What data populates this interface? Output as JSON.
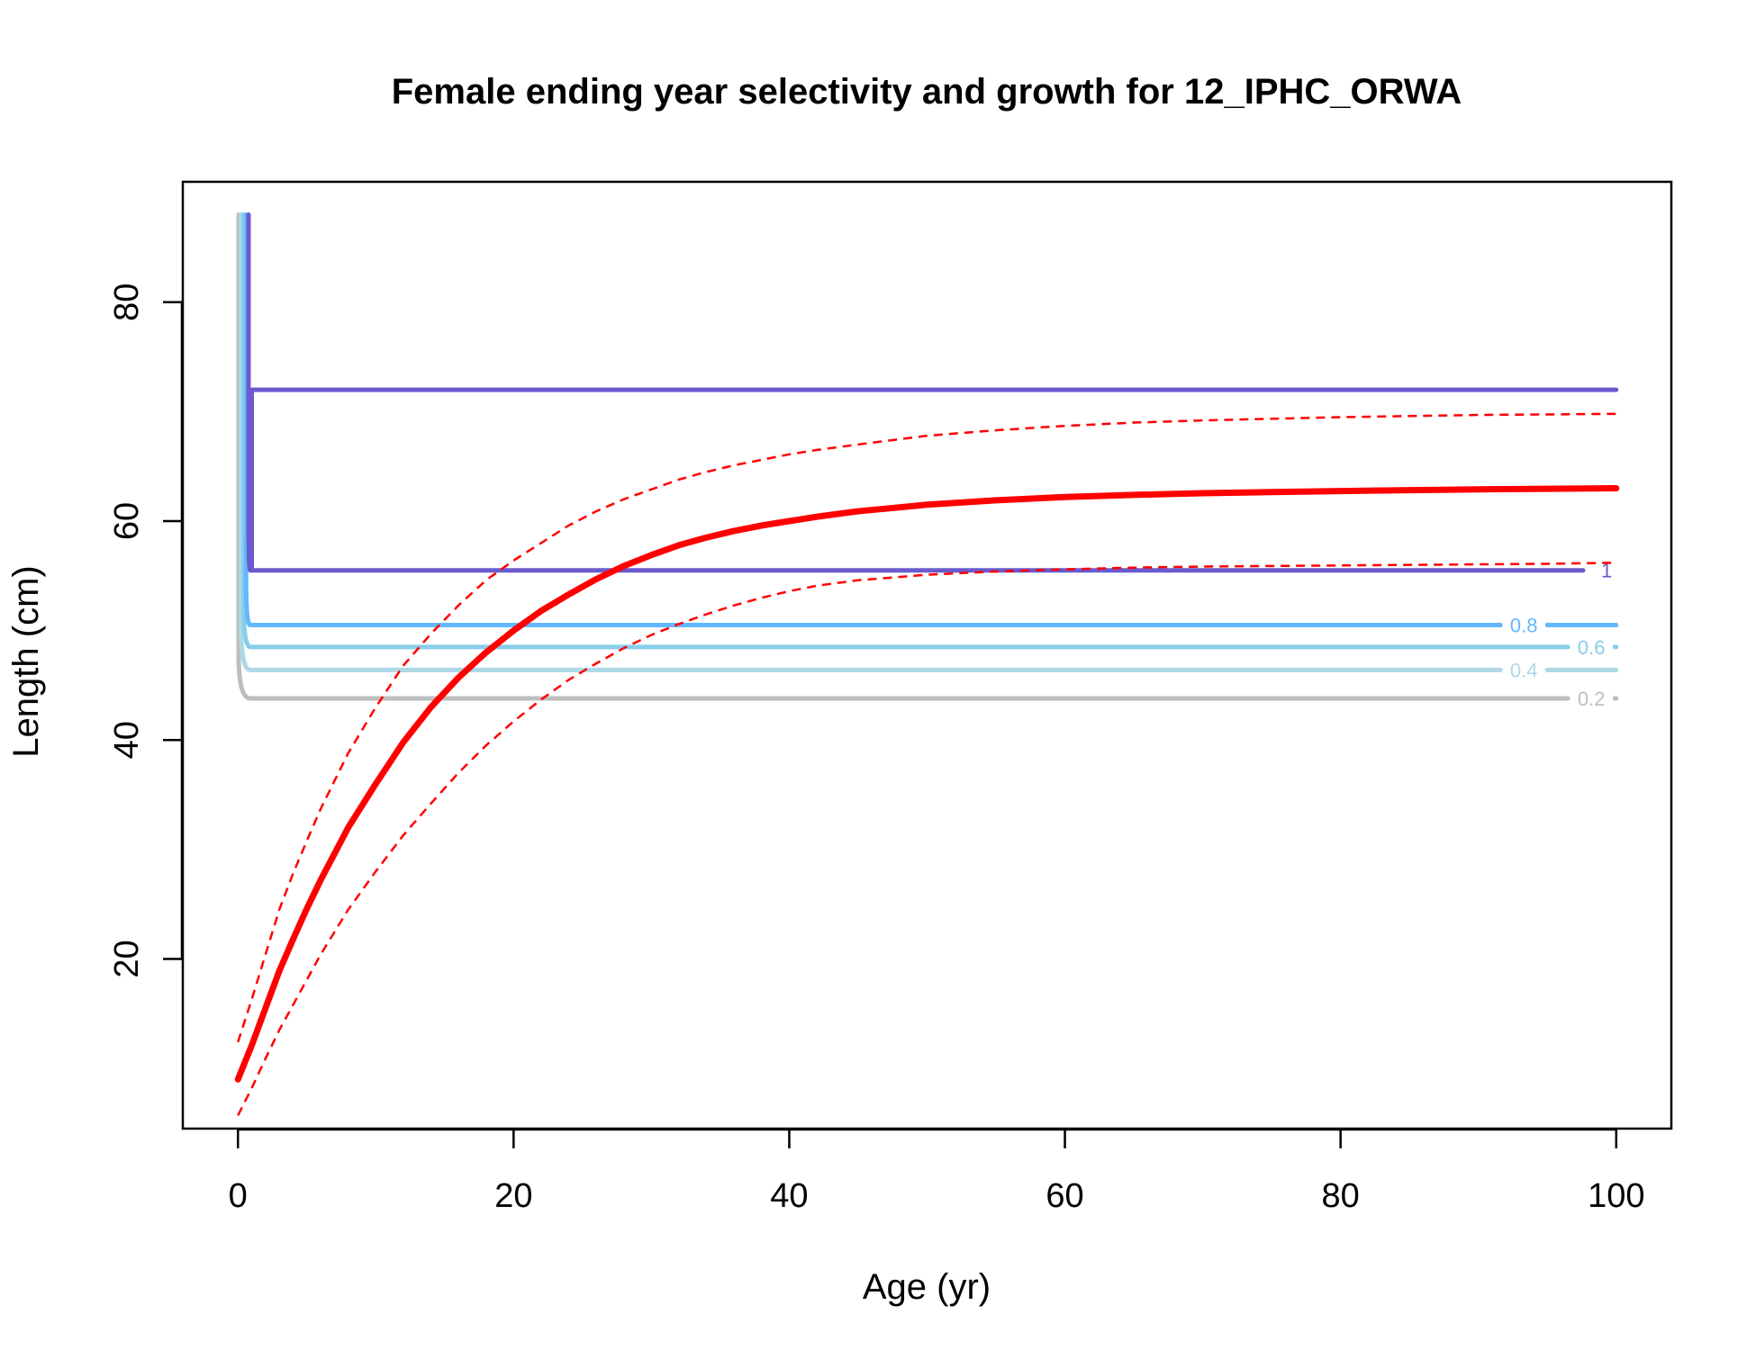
{
  "chart_data": {
    "type": "line",
    "title": "Female ending year selectivity and growth for 12_IPHC_ORWA",
    "xlabel": "Age (yr)",
    "ylabel": "Length (cm)",
    "xlim": [
      -4,
      104
    ],
    "ylim": [
      4.5,
      91
    ],
    "x_ticks": [
      0,
      20,
      40,
      60,
      80,
      100
    ],
    "y_ticks": [
      20,
      40,
      60,
      80
    ],
    "grid": false,
    "growth": {
      "color": "#ff0000",
      "ages": [
        0,
        1,
        2,
        3,
        4,
        5,
        6,
        8,
        10,
        12,
        14,
        16,
        18,
        20,
        22,
        24,
        26,
        28,
        30,
        32,
        34,
        36,
        38,
        40,
        42,
        45,
        50,
        55,
        60,
        65,
        70,
        75,
        80,
        85,
        90,
        95,
        100
      ],
      "mean": [
        9.0,
        12.1,
        15.5,
        18.9,
        21.8,
        24.6,
        27.2,
        32.0,
        36.0,
        39.8,
        43.0,
        45.7,
        48.0,
        50.0,
        51.8,
        53.3,
        54.7,
        55.9,
        56.9,
        57.8,
        58.5,
        59.1,
        59.6,
        60.0,
        60.4,
        60.9,
        61.5,
        61.9,
        62.2,
        62.4,
        62.55,
        62.65,
        62.75,
        62.83,
        62.9,
        62.95,
        63.0
      ],
      "upper": [
        12.4,
        16.3,
        20.4,
        24.5,
        27.8,
        30.8,
        33.7,
        38.8,
        43.0,
        46.8,
        49.7,
        52.3,
        54.6,
        56.4,
        58.0,
        59.6,
        60.9,
        62.0,
        62.9,
        63.8,
        64.5,
        65.1,
        65.6,
        66.1,
        66.5,
        67.0,
        67.8,
        68.3,
        68.7,
        69.0,
        69.2,
        69.35,
        69.5,
        69.6,
        69.7,
        69.75,
        69.8
      ],
      "lower": [
        5.7,
        8.2,
        10.9,
        13.5,
        15.8,
        18.1,
        20.4,
        24.5,
        28.0,
        31.3,
        34.2,
        37.0,
        39.5,
        41.7,
        43.7,
        45.5,
        47.0,
        48.4,
        49.6,
        50.6,
        51.5,
        52.3,
        53.0,
        53.6,
        54.1,
        54.6,
        55.1,
        55.4,
        55.6,
        55.75,
        55.85,
        55.9,
        55.95,
        56.0,
        56.05,
        56.1,
        56.2
      ]
    },
    "selectivity_contours": [
      {
        "level": "0.2",
        "color": "#bebebe",
        "length": 43.8,
        "label_age": 98.2
      },
      {
        "level": "0.4",
        "color": "#add8e6",
        "length": 46.4,
        "label_age": 93.3
      },
      {
        "level": "0.6",
        "color": "#87ceeb",
        "length": 48.5,
        "label_age": 98.2
      },
      {
        "level": "0.8",
        "color": "#63b8ff",
        "length": 50.5,
        "label_age": 93.3
      },
      {
        "level": "1",
        "color": "#6a5acd",
        "length": 55.5,
        "label_age": 99.3
      }
    ],
    "selectivity_top": {
      "color": "#6a5acd",
      "length": 72.0
    },
    "selectivity_peak_length": 88.0
  }
}
